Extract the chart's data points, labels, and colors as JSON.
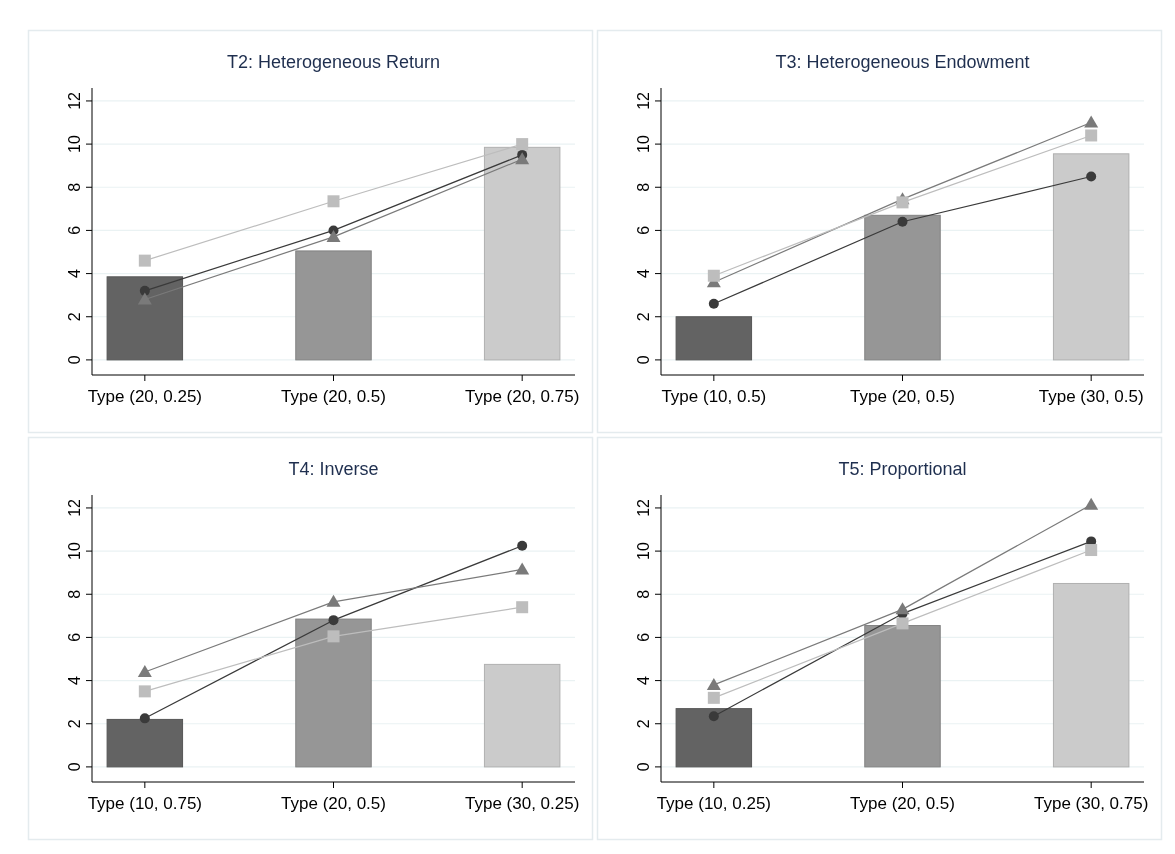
{
  "chart_data": [
    {
      "type": "bar",
      "title": "T2: Heterogeneous Return",
      "categories": [
        "Type (20, 0.25)",
        "Type (20, 0.5)",
        "Type (20, 0.75)"
      ],
      "ylim": [
        -0.7,
        12.6
      ],
      "yticks": [
        0,
        2,
        4,
        6,
        8,
        10,
        12
      ],
      "grid": "y",
      "series": [
        {
          "colors": [
            "#636363",
            "#969696",
            "#cbcbcb"
          ],
          "values": [
            3.85,
            5.05,
            9.85
          ]
        },
        {
          "type": "line",
          "color": "#3a3a3a",
          "marker": "circle",
          "values": [
            3.2,
            6.0,
            9.5
          ]
        },
        {
          "type": "line",
          "color": "#7a7a7a",
          "marker": "triangle",
          "values": [
            2.8,
            5.7,
            9.3
          ]
        },
        {
          "type": "line",
          "color": "#bdbdbd",
          "marker": "square",
          "values": [
            4.6,
            7.35,
            10.0
          ]
        }
      ]
    },
    {
      "type": "bar",
      "title": "T3: Heterogeneous Endowment",
      "categories": [
        "Type (10, 0.5)",
        "Type (20, 0.5)",
        "Type (30, 0.5)"
      ],
      "ylim": [
        -0.7,
        12.6
      ],
      "yticks": [
        0,
        2,
        4,
        6,
        8,
        10,
        12
      ],
      "grid": "y",
      "series": [
        {
          "colors": [
            "#636363",
            "#969696",
            "#cbcbcb"
          ],
          "values": [
            2.0,
            6.7,
            9.55
          ]
        },
        {
          "type": "line",
          "color": "#3a3a3a",
          "marker": "circle",
          "values": [
            2.6,
            6.4,
            8.5
          ]
        },
        {
          "type": "line",
          "color": "#7a7a7a",
          "marker": "triangle",
          "values": [
            3.6,
            7.45,
            11.0
          ]
        },
        {
          "type": "line",
          "color": "#bdbdbd",
          "marker": "square",
          "values": [
            3.9,
            7.3,
            10.4
          ]
        }
      ]
    },
    {
      "type": "bar",
      "title": "T4: Inverse",
      "categories": [
        "Type (10, 0.75)",
        "Type (20, 0.5)",
        "Type (30, 0.25)"
      ],
      "ylim": [
        -0.7,
        12.6
      ],
      "yticks": [
        0,
        2,
        4,
        6,
        8,
        10,
        12
      ],
      "grid": "y",
      "series": [
        {
          "colors": [
            "#636363",
            "#969696",
            "#cbcbcb"
          ],
          "values": [
            2.2,
            6.85,
            4.75
          ]
        },
        {
          "type": "line",
          "color": "#3a3a3a",
          "marker": "circle",
          "values": [
            2.25,
            6.8,
            10.25
          ]
        },
        {
          "type": "line",
          "color": "#7a7a7a",
          "marker": "triangle",
          "values": [
            4.4,
            7.65,
            9.15
          ]
        },
        {
          "type": "line",
          "color": "#bdbdbd",
          "marker": "square",
          "values": [
            3.5,
            6.05,
            7.4
          ]
        }
      ]
    },
    {
      "type": "bar",
      "title": "T5: Proportional",
      "categories": [
        "Type (10, 0.25)",
        "Type (20, 0.5)",
        "Type (30, 0.75)"
      ],
      "ylim": [
        -0.7,
        12.6
      ],
      "yticks": [
        0,
        2,
        4,
        6,
        8,
        10,
        12
      ],
      "grid": "y",
      "series": [
        {
          "colors": [
            "#636363",
            "#969696",
            "#cbcbcb"
          ],
          "values": [
            2.7,
            6.55,
            8.5
          ]
        },
        {
          "type": "line",
          "color": "#3a3a3a",
          "marker": "circle",
          "values": [
            2.35,
            7.1,
            10.45
          ]
        },
        {
          "type": "line",
          "color": "#7a7a7a",
          "marker": "triangle",
          "values": [
            3.8,
            7.3,
            12.15
          ]
        },
        {
          "type": "line",
          "color": "#bdbdbd",
          "marker": "square",
          "values": [
            3.2,
            6.65,
            10.05
          ]
        }
      ]
    }
  ]
}
